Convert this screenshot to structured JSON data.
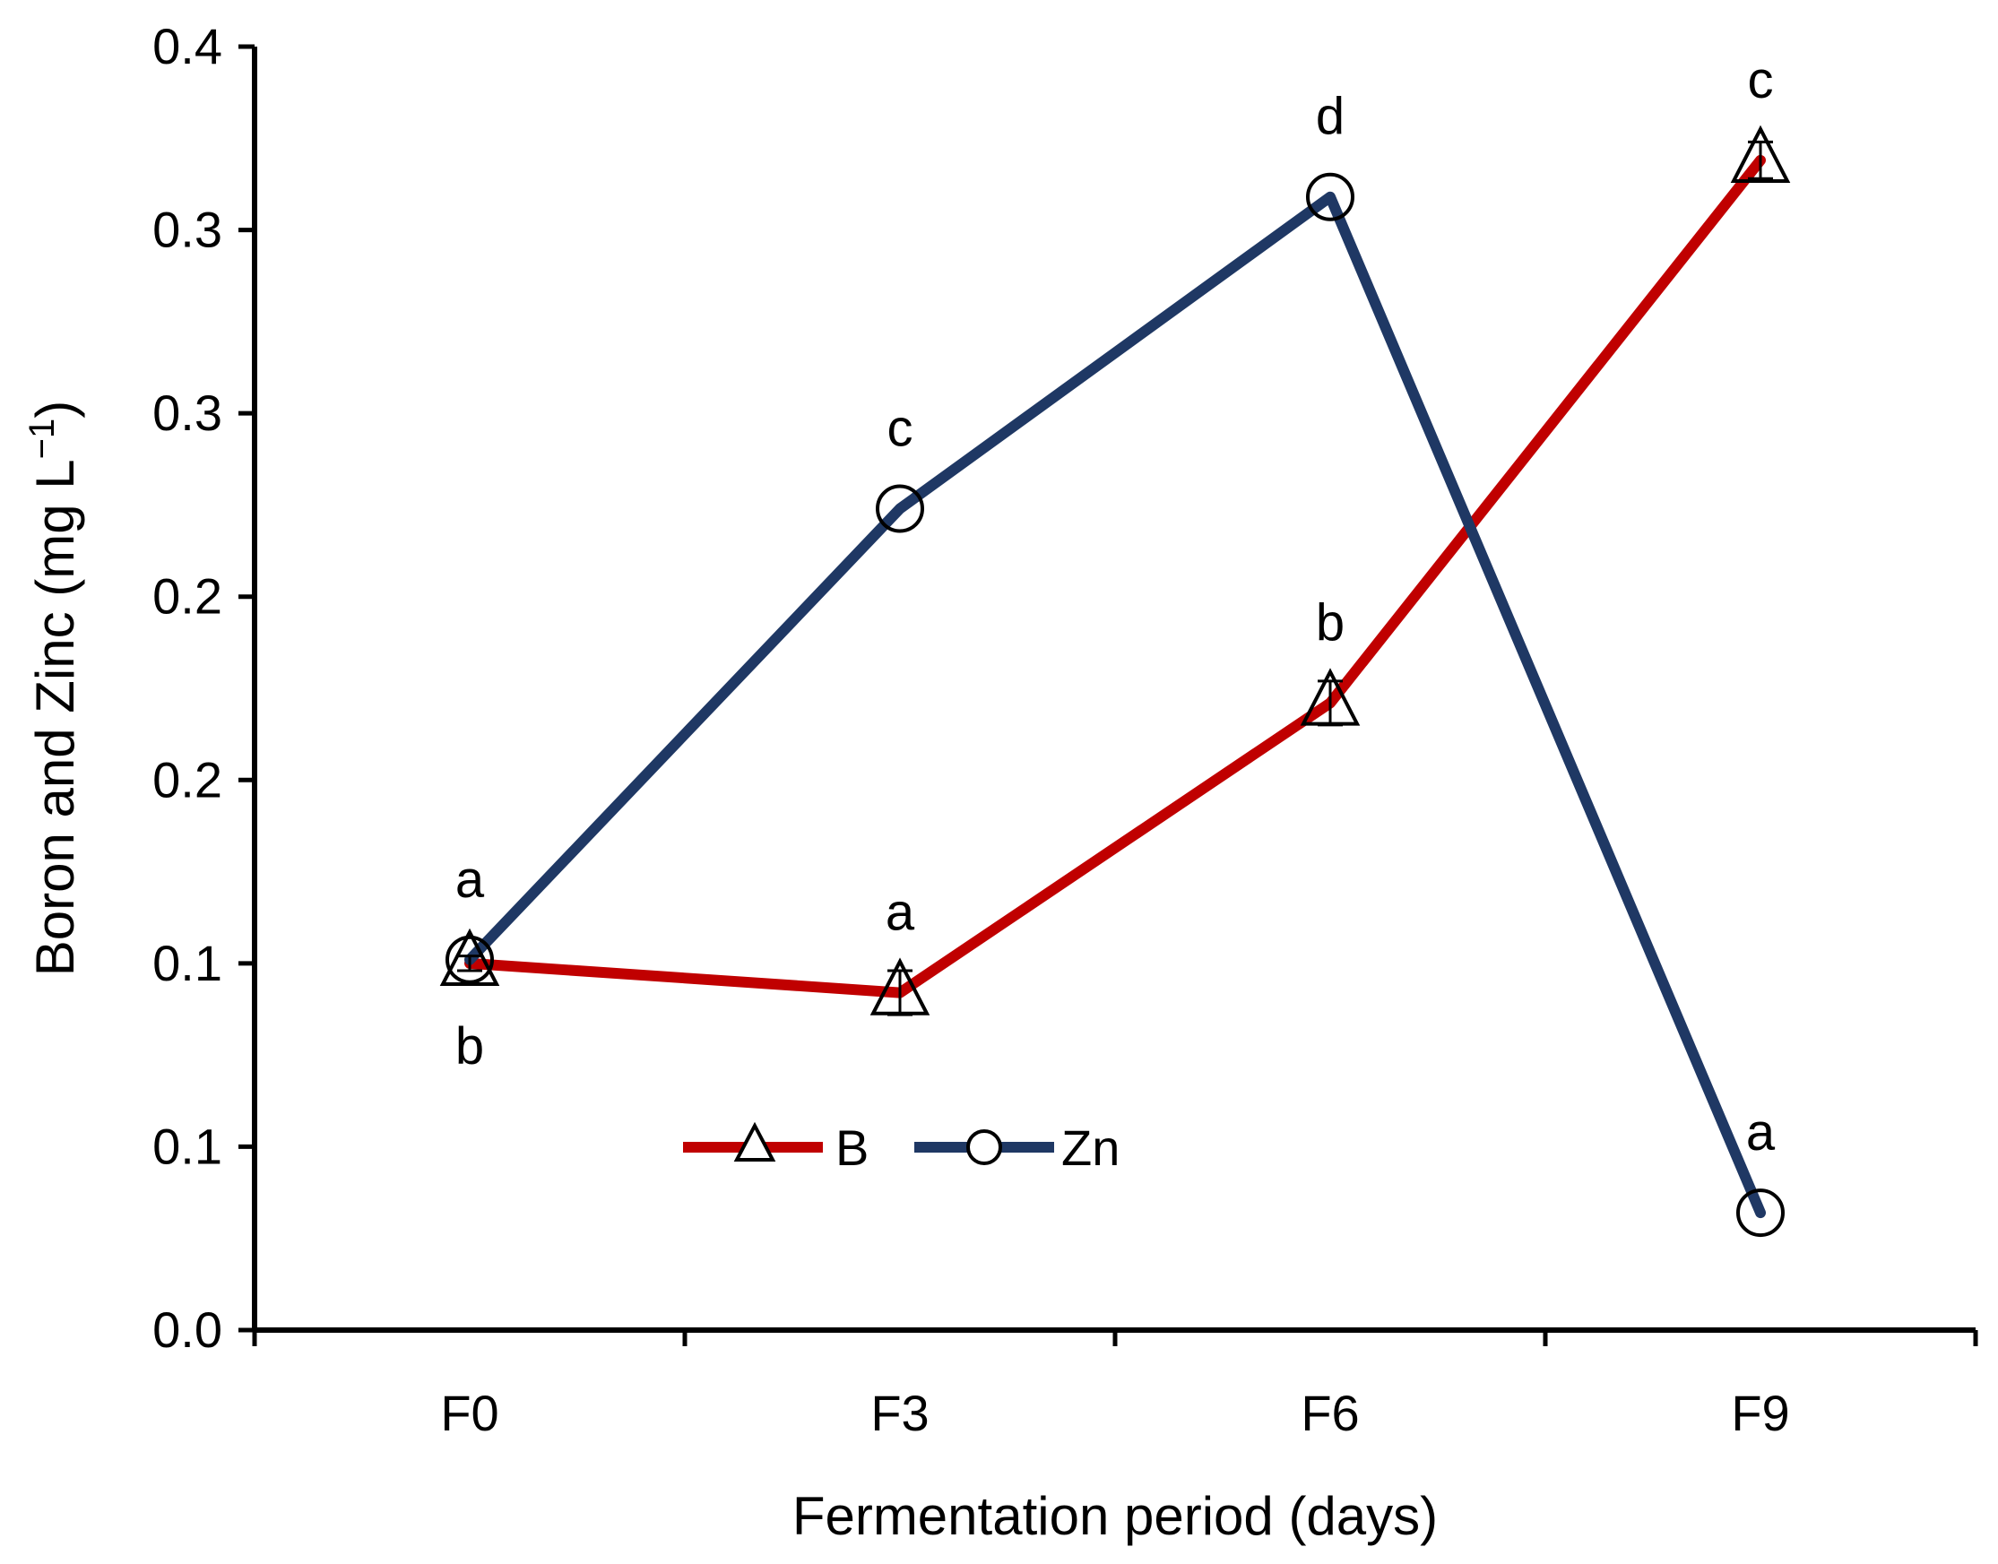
{
  "chart_data": {
    "type": "line",
    "title": "",
    "xlabel": "Fermentation period (days)",
    "ylabel_main": "Boron and Zinc (mg L",
    "ylabel_sup": "−1",
    "ylabel_close": ")",
    "categories": [
      "F0",
      "F3",
      "F6",
      "F9"
    ],
    "ylim": [
      0,
      0.35
    ],
    "y_ticks": [
      0,
      0.05,
      0.1,
      0.15,
      0.2,
      0.25,
      0.3,
      0.35
    ],
    "y_tick_labels": [
      "0.0",
      "0.1",
      "0.1",
      "0.2",
      "0.2",
      "0.3",
      "0.3",
      "0.4"
    ],
    "legend_position": "bottom-center",
    "series": [
      {
        "name": "B",
        "marker": "triangle",
        "color": "#c00000",
        "values": [
          0.1,
          0.092,
          0.171,
          0.319
        ],
        "errors": [
          0.002,
          0.006,
          0.006,
          0.005
        ],
        "significance": [
          "b",
          "a",
          "b",
          "c"
        ],
        "significance_pos": [
          "below",
          "above",
          "above",
          "above"
        ]
      },
      {
        "name": "Zn",
        "marker": "circle",
        "color": "#1f3864",
        "values": [
          0.101,
          0.224,
          0.309,
          0.032
        ],
        "errors": [
          0,
          0,
          0,
          0
        ],
        "significance": [
          "a",
          "c",
          "d",
          "a"
        ],
        "significance_pos": [
          "above",
          "above",
          "above",
          "above"
        ]
      }
    ]
  }
}
